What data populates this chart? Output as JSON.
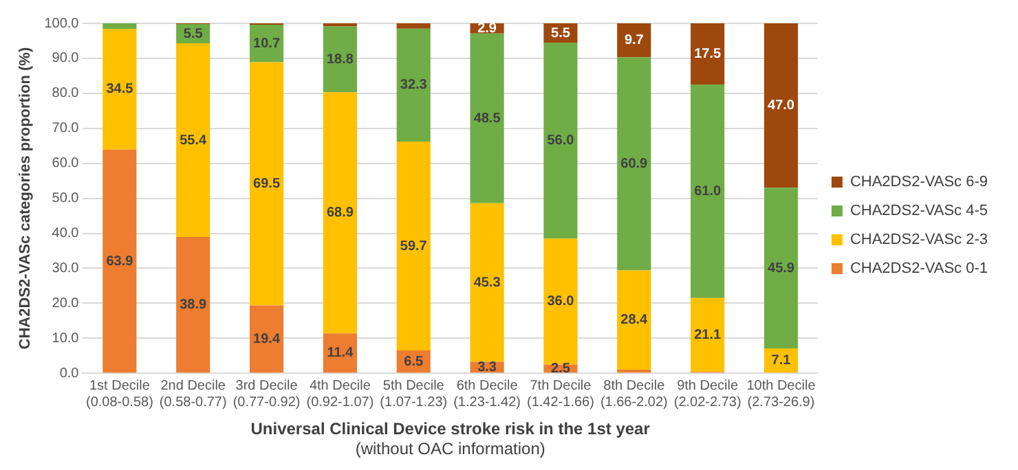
{
  "chart_data": {
    "type": "bar",
    "stacked": true,
    "ylabel": "CHA2DS2-VASc categories proportion (%)",
    "xlabel": "Universal Clinical Device stroke risk in the 1st year",
    "annotations": [
      "(without OAC information)"
    ],
    "categories": [
      "1st Decile\n(0.08-0.58)",
      "2nd Decile\n(0.58-0.77)",
      "3rd Decile\n(0.77-0.92)",
      "4th Decile\n(0.92-1.07)",
      "5th Decile\n(1.07-1.23)",
      "6th Decile\n(1.23-1.42)",
      "7th Decile\n(1.42-1.66)",
      "8th Decile\n(1.66-2.02)",
      "9th Decile\n(2.02-2.73)",
      "10th Decile\n(2.73-26.9)"
    ],
    "series": [
      {
        "name": "CHA2DS2-VASc 0-1",
        "color": "#ed7d31",
        "values": [
          63.9,
          38.9,
          19.4,
          11.4,
          6.5,
          3.3,
          2.5,
          1.0,
          0.4,
          0
        ],
        "value_labels": [
          "63.9",
          "38.9",
          "19.4",
          "11.4",
          "6.5",
          "3.3",
          "2.5",
          null,
          null,
          null
        ]
      },
      {
        "name": "CHA2DS2-VASc 2-3",
        "color": "#ffc000",
        "values": [
          34.5,
          55.4,
          69.5,
          68.9,
          59.7,
          45.3,
          36.0,
          28.4,
          21.1,
          7.1
        ],
        "value_labels": [
          "34.5",
          "55.4",
          "69.5",
          "68.9",
          "59.7",
          "45.3",
          "36.0",
          "28.4",
          "21.1",
          "7.1"
        ]
      },
      {
        "name": "CHA2DS2-VASc 4-5",
        "color": "#70ad47",
        "values": [
          1.6,
          5.5,
          10.7,
          18.8,
          32.3,
          48.5,
          56.0,
          60.9,
          61.0,
          45.9
        ],
        "value_labels": [
          null,
          "5.5",
          "10.7",
          "18.8",
          "32.3",
          "48.5",
          "56.0",
          "60.9",
          "61.0",
          "45.9"
        ]
      },
      {
        "name": "CHA2DS2-VASc 6-9",
        "color": "#9e480e",
        "values": [
          0,
          0.2,
          0.4,
          0.9,
          1.5,
          2.9,
          5.5,
          9.7,
          17.5,
          47.0
        ],
        "value_labels": [
          null,
          null,
          null,
          null,
          null,
          "2.9",
          "5.5",
          "9.7",
          "17.5",
          "47.0"
        ]
      }
    ],
    "ylim": [
      0,
      100
    ],
    "yticks": [
      {
        "value": 0,
        "label": "0.0"
      },
      {
        "value": 10,
        "label": "10.0"
      },
      {
        "value": 20,
        "label": "20.0"
      },
      {
        "value": 30,
        "label": "30.0"
      },
      {
        "value": 40,
        "label": "40.0"
      },
      {
        "value": 50,
        "label": "50.0"
      },
      {
        "value": 60,
        "label": "60.0"
      },
      {
        "value": 70,
        "label": "70.0"
      },
      {
        "value": 80,
        "label": "80.0"
      },
      {
        "value": 90,
        "label": "90.0"
      },
      {
        "value": 100,
        "label": "100.0"
      }
    ],
    "grid": "y",
    "legend": "right"
  }
}
